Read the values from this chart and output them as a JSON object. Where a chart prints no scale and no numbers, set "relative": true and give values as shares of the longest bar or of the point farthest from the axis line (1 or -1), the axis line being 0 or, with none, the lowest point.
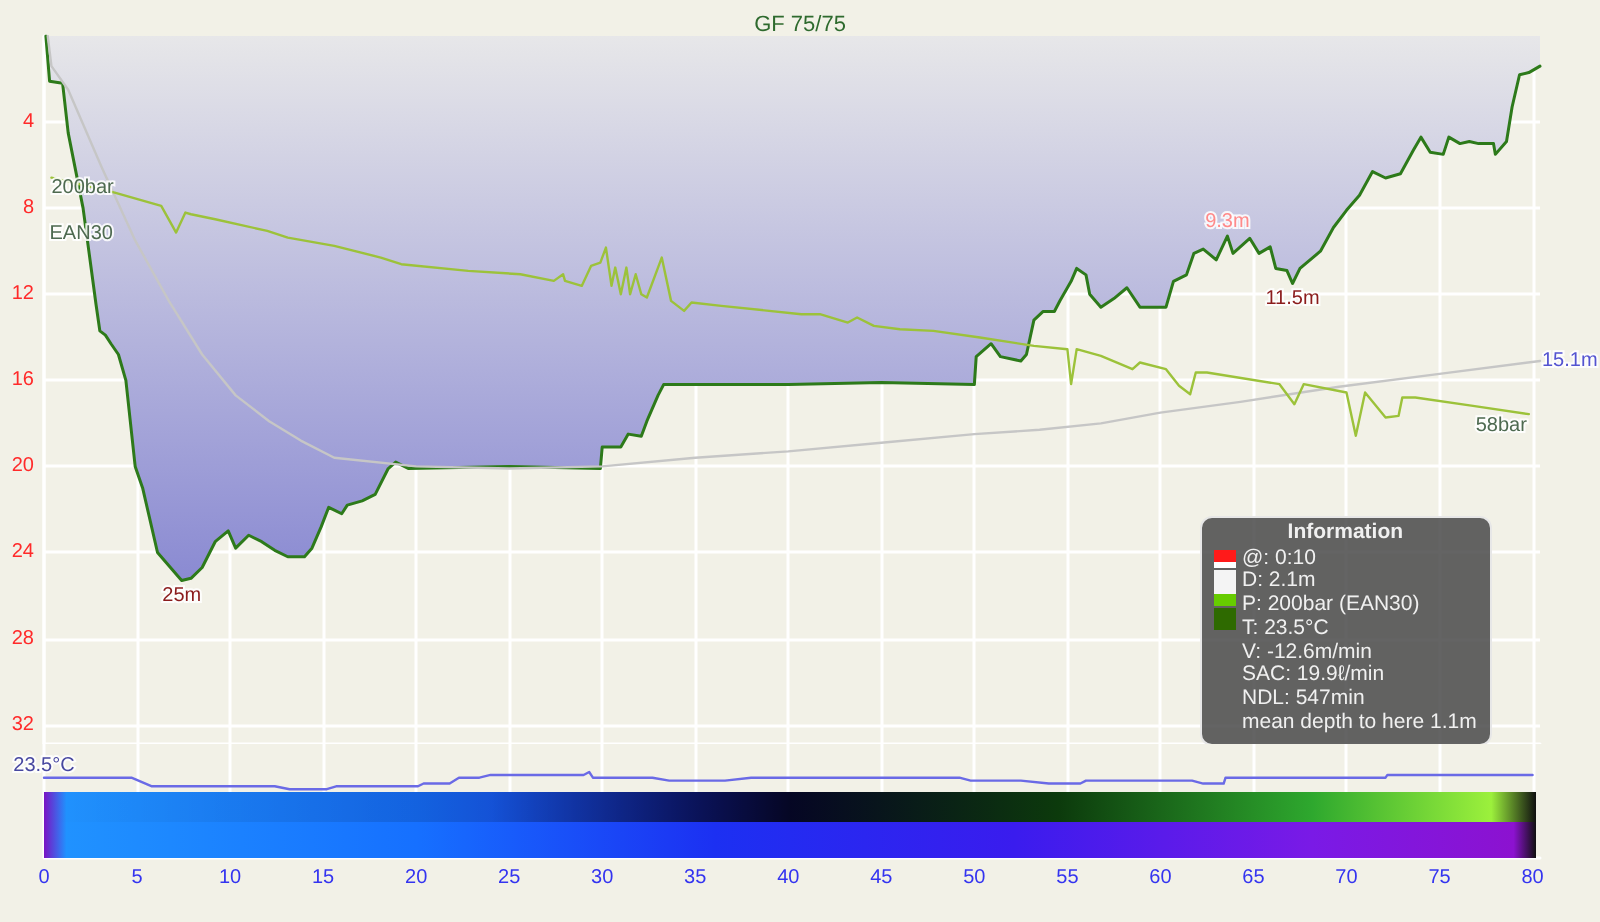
{
  "chart_data": [
    {
      "type": "line",
      "title": "GF 75/75",
      "xlim": [
        0,
        80.4
      ],
      "xticks": [
        0,
        5,
        10,
        15,
        20,
        25,
        30,
        35,
        40,
        45,
        50,
        55,
        60,
        65,
        70,
        75,
        80
      ],
      "ylim": [
        32.9,
        0
      ],
      "yticks": [
        4,
        8,
        12,
        16,
        20,
        24,
        28,
        32
      ],
      "y2lim": [
        -140,
        285
      ],
      "tick_labels": "y",
      "grid": true,
      "marker": "none",
      "annotations": [
        "Information",
        "@: 0:10",
        "D: 2.1m",
        "P: 200bar (EAN30)",
        "T: 23.5°C",
        "V: -12.6m/min",
        "SAC: 19.9ℓ/min",
        "NDL: 547min",
        "mean depth to here 1.1m",
        {
          "text": "EAN30",
          "x": 2.0,
          "y": 9.2
        }
      ],
      "series": [
        {
          "type": "area",
          "color": "#2d7a1a",
          "x": [
            0.1,
            0.3,
            1.0,
            1.3,
            2.1,
            2.8,
            3.0,
            3.3,
            3.6,
            4.0,
            4.4,
            4.9,
            5.3,
            6.1,
            7.2,
            7.4,
            7.9,
            8.5,
            9.2,
            9.9,
            10.3,
            11.0,
            11.7,
            12.4,
            13.1,
            14.0,
            14.4,
            14.9,
            15.3,
            16.0,
            16.3,
            17.1,
            17.8,
            18.5,
            18.9,
            19.6,
            25.0,
            29.9,
            30.0,
            31.0,
            31.4,
            32.1,
            32.4,
            33.0,
            33.3,
            40.0,
            45.0,
            50.0,
            50.1,
            50.9,
            51.4,
            52.5,
            52.8,
            53.2,
            53.7,
            54.3,
            54.6,
            55.2,
            55.5,
            56.0,
            56.2,
            56.8,
            57.5,
            58.2,
            58.9,
            60.3,
            60.7,
            61.4,
            61.8,
            62.3,
            63.0,
            63.6,
            63.9,
            64.8,
            65.3,
            65.9,
            66.2,
            66.8,
            67.1,
            67.5,
            68.6,
            69.3,
            70.0,
            70.7,
            71.4,
            72.1,
            72.9,
            73.6,
            74.0,
            74.5,
            75.2,
            75.5,
            76.1,
            76.6,
            77.1,
            77.9,
            78.0,
            78.6,
            78.9,
            79.3,
            79.8,
            80.4
          ],
          "values": [
            0,
            2.1,
            2.2,
            4.5,
            8.0,
            12.5,
            13.7,
            13.9,
            14.3,
            14.8,
            16.0,
            20.0,
            21.0,
            24.0,
            25.1,
            25.3,
            25.2,
            24.7,
            23.5,
            23.0,
            23.8,
            23.2,
            23.5,
            23.9,
            24.2,
            24.2,
            23.8,
            22.8,
            21.9,
            22.2,
            21.8,
            21.6,
            21.3,
            20.1,
            19.8,
            20.1,
            20.0,
            20.1,
            19.1,
            19.1,
            18.5,
            18.6,
            17.9,
            16.7,
            16.2,
            16.2,
            16.1,
            16.2,
            14.9,
            14.3,
            14.9,
            15.1,
            14.8,
            13.2,
            12.8,
            12.8,
            12.3,
            11.4,
            10.8,
            11.1,
            12.0,
            12.6,
            12.2,
            11.7,
            12.6,
            12.6,
            11.4,
            11.1,
            10.1,
            9.9,
            10.4,
            9.3,
            10.1,
            9.4,
            10.1,
            9.8,
            10.8,
            10.9,
            11.5,
            10.8,
            10.0,
            8.9,
            8.1,
            7.4,
            6.3,
            6.6,
            6.4,
            5.3,
            4.7,
            5.4,
            5.5,
            4.7,
            5.0,
            4.9,
            5.0,
            5.0,
            5.5,
            4.9,
            3.3,
            1.8,
            1.7,
            1.4
          ],
          "value_labels": [
            null,
            null,
            null,
            null,
            null,
            null,
            null,
            null,
            null,
            null,
            null,
            null,
            null,
            null,
            null,
            "25m",
            null,
            null,
            null,
            null,
            null,
            null,
            null,
            null,
            null,
            null,
            null,
            null,
            null,
            null,
            null,
            null,
            null,
            null,
            null,
            null,
            null,
            null,
            null,
            null,
            null,
            null,
            null,
            null,
            null,
            null,
            null,
            null,
            null,
            null,
            null,
            null,
            null,
            null,
            null,
            null,
            null,
            null,
            null,
            null,
            null,
            null,
            null,
            null,
            null,
            null,
            null,
            null,
            null,
            null,
            null,
            "9.3m",
            null,
            null,
            null,
            null,
            null,
            null,
            "11.5m",
            null,
            null,
            null,
            null,
            null,
            null,
            null,
            null,
            null,
            null,
            null,
            null,
            null,
            null,
            null,
            null,
            null,
            null,
            null,
            null,
            null,
            null,
            null
          ]
        },
        {
          "color": "#c6c6c6",
          "x": [
            0.2,
            0.4,
            1.3,
            3.1,
            4.9,
            6.7,
            8.5,
            10.3,
            12.1,
            13.8,
            15.6,
            20.0,
            25.0,
            30.0,
            35.0,
            40.0,
            45.0,
            50.0,
            53.5,
            56.8,
            60.0,
            64.3,
            69.6,
            75.0,
            80.4
          ],
          "values": [
            0,
            1.4,
            2.5,
            6.1,
            9.5,
            12.3,
            14.8,
            16.7,
            17.9,
            18.8,
            19.6,
            20.0,
            20.1,
            20.0,
            19.6,
            19.3,
            18.9,
            18.5,
            18.3,
            18.0,
            17.5,
            17.0,
            16.3,
            15.7,
            15.1
          ],
          "value_labels": [
            null,
            null,
            null,
            null,
            null,
            null,
            null,
            null,
            null,
            null,
            null,
            null,
            null,
            null,
            null,
            null,
            null,
            null,
            null,
            null,
            null,
            null,
            null,
            null,
            "15.1m"
          ]
        },
        {
          "color": "#9cc23a",
          "axis": "y2",
          "x": [
            0.4,
            3.8,
            6.3,
            6.9,
            7.1,
            7.6,
            7.9,
            9.2,
            12.0,
            13.1,
            15.6,
            18.1,
            19.2,
            22.8,
            25.6,
            27.4,
            27.9,
            28.0,
            28.9,
            29.4,
            29.9,
            30.2,
            30.5,
            30.7,
            31.0,
            31.3,
            31.5,
            31.8,
            32.1,
            32.4,
            33.2,
            33.7,
            34.4,
            34.8,
            36.4,
            40.7,
            41.7,
            43.2,
            43.7,
            44.6,
            46.0,
            47.8,
            50.3,
            53.2,
            55.0,
            55.2,
            55.5,
            56.8,
            58.5,
            58.9,
            60.3,
            61.0,
            61.6,
            61.9,
            62.5,
            66.4,
            67.2,
            67.7,
            70.0,
            70.5,
            71.0,
            72.1,
            72.8,
            73.0,
            73.7,
            76.8,
            79.8
          ],
          "values": [
            200,
            191,
            183,
            171,
            167,
            179,
            178,
            175,
            168,
            164,
            159,
            152,
            148,
            144,
            142,
            138,
            142,
            138,
            135,
            147,
            149,
            158,
            135,
            146,
            130,
            146,
            130,
            142,
            130,
            128,
            152,
            126,
            120,
            125,
            123,
            118,
            118,
            113,
            116,
            111,
            109,
            108,
            104,
            99,
            97,
            76,
            97,
            93,
            85,
            89,
            85,
            75,
            70,
            83,
            83,
            76,
            64,
            76,
            71,
            45,
            71,
            56,
            57,
            68,
            68,
            63,
            58
          ],
          "value_labels": [
            "200bar",
            null,
            null,
            null,
            null,
            null,
            null,
            null,
            null,
            null,
            null,
            null,
            null,
            null,
            null,
            null,
            null,
            null,
            null,
            null,
            null,
            null,
            null,
            null,
            null,
            null,
            null,
            null,
            null,
            null,
            null,
            null,
            null,
            null,
            null,
            null,
            null,
            null,
            null,
            null,
            null,
            null,
            null,
            null,
            null,
            null,
            null,
            null,
            null,
            null,
            null,
            null,
            null,
            null,
            null,
            null,
            null,
            null,
            null,
            null,
            null,
            null,
            null,
            null,
            null,
            null,
            "58bar"
          ]
        }
      ]
    },
    {
      "type": "line",
      "relative": true,
      "color": "#6a6ae6",
      "xlim": [
        0,
        80.4
      ],
      "xticks": [
        0,
        5,
        10,
        15,
        20,
        25,
        30,
        35,
        40,
        45,
        50,
        55,
        60,
        65,
        70,
        75,
        80
      ],
      "tick_labels": "x",
      "grid": "x",
      "marker": "none",
      "annotations": [
        {
          "text": "23.5°C",
          "x": 0,
          "y": 0.67
        }
      ],
      "x": [
        0,
        4.7,
        5.8,
        12.4,
        13.2,
        15.2,
        15.7,
        20.1,
        20.4,
        21.8,
        22.3,
        23.4,
        24.0,
        29.0,
        29.3,
        29.5,
        32.7,
        33.6,
        36.6,
        38.0,
        40.0,
        49.2,
        49.8,
        52.5,
        54.0,
        55.7,
        56.0,
        61.7,
        62.3,
        63.4,
        63.5,
        72.1,
        72.2,
        80.0
      ],
      "values": [
        0.67,
        0.67,
        0.17,
        0.17,
        0,
        0,
        0.17,
        0.17,
        0.33,
        0.33,
        0.67,
        0.67,
        0.83,
        0.83,
        1,
        0.67,
        0.67,
        0.5,
        0.5,
        0.67,
        0.67,
        0.67,
        0.5,
        0.5,
        0.33,
        0.33,
        0.5,
        0.5,
        0.33,
        0.33,
        0.67,
        0.67,
        0.83,
        0.83
      ]
    }
  ]
}
